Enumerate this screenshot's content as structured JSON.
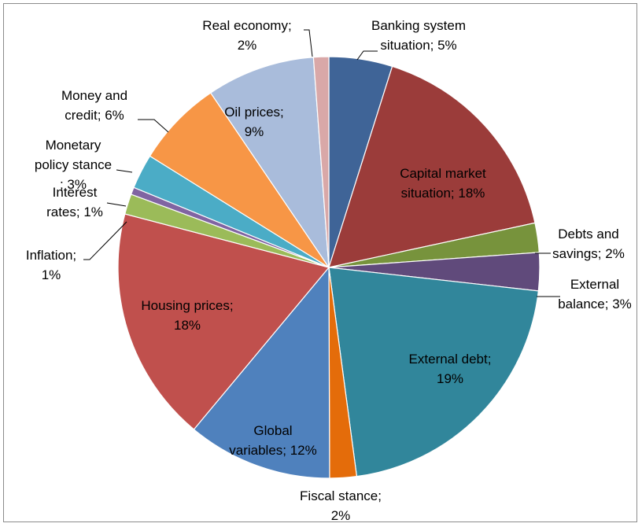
{
  "chart_data": {
    "type": "pie",
    "title": "",
    "legend": "none",
    "slices": [
      {
        "name": "Banking system situation",
        "value": 5,
        "display": "Banking system situation; 5%",
        "color": "#3f6497"
      },
      {
        "name": "Capital market situation",
        "value": 18,
        "display": "Capital market situation; 18%",
        "color": "#9b3c3a"
      },
      {
        "name": "Debts and savings",
        "value": 2,
        "display": "Debts and savings; 2%",
        "color": "#77933c"
      },
      {
        "name": "External balance",
        "value": 3,
        "display": "External balance; 3%",
        "color": "#604a7b"
      },
      {
        "name": "External debt",
        "value": 19,
        "display": "External debt; 19%",
        "color": "#31869b"
      },
      {
        "name": "Fiscal stance",
        "value": 2,
        "display": "Fiscal stance; 2%",
        "color": "#e46c0a"
      },
      {
        "name": "Global variables",
        "value": 12,
        "display": "Global variables; 12%",
        "color": "#4f81bd"
      },
      {
        "name": "Housing prices",
        "value": 18,
        "display": "Housing prices; 18%",
        "color": "#c0504d"
      },
      {
        "name": "Inflation",
        "value": 1,
        "display": "Inflation; 1%",
        "color": "#9bbb59"
      },
      {
        "name": "Interest rates",
        "value": 1,
        "display": "Interest rates; 1%",
        "color": "#8064a2"
      },
      {
        "name": "Monetary policy stance",
        "value": 3,
        "display": "Monetary policy stance; 3%",
        "color": "#4bacc6"
      },
      {
        "name": "Money and credit",
        "value": 6,
        "display": "Money and credit; 6%",
        "color": "#f79646"
      },
      {
        "name": "Oil prices",
        "value": 9,
        "display": "Oil prices; 9%",
        "color": "#a9bcdb"
      },
      {
        "name": "Real economy",
        "value": 2,
        "display": "Real economy; 2%",
        "color": "#d9a8a8"
      }
    ]
  }
}
